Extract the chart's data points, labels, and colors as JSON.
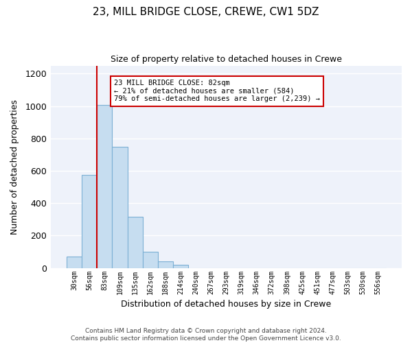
{
  "title": "23, MILL BRIDGE CLOSE, CREWE, CW1 5DZ",
  "subtitle": "Size of property relative to detached houses in Crewe",
  "xlabel": "Distribution of detached houses by size in Crewe",
  "ylabel": "Number of detached properties",
  "bin_labels": [
    "30sqm",
    "56sqm",
    "83sqm",
    "109sqm",
    "135sqm",
    "162sqm",
    "188sqm",
    "214sqm",
    "240sqm",
    "267sqm",
    "293sqm",
    "319sqm",
    "346sqm",
    "372sqm",
    "398sqm",
    "425sqm",
    "451sqm",
    "477sqm",
    "503sqm",
    "530sqm",
    "556sqm"
  ],
  "bin_values": [
    70,
    575,
    1005,
    750,
    315,
    100,
    42,
    20,
    0,
    0,
    0,
    0,
    0,
    0,
    0,
    0,
    0,
    0,
    0,
    0,
    0
  ],
  "bar_color": "#c6ddf0",
  "bar_edge_color": "#7bafd4",
  "marker_label": "23 MILL BRIDGE CLOSE: 82sqm",
  "annotation_line1": "← 21% of detached houses are smaller (584)",
  "annotation_line2": "79% of semi-detached houses are larger (2,239) →",
  "marker_color": "#cc0000",
  "annotation_box_edge": "#cc0000",
  "ylim": [
    0,
    1250
  ],
  "yticks": [
    0,
    200,
    400,
    600,
    800,
    1000,
    1200
  ],
  "footer_line1": "Contains HM Land Registry data © Crown copyright and database right 2024.",
  "footer_line2": "Contains public sector information licensed under the Open Government Licence v3.0.",
  "background_color": "#ffffff",
  "plot_bg_color": "#eef2fa",
  "grid_color": "#ffffff"
}
